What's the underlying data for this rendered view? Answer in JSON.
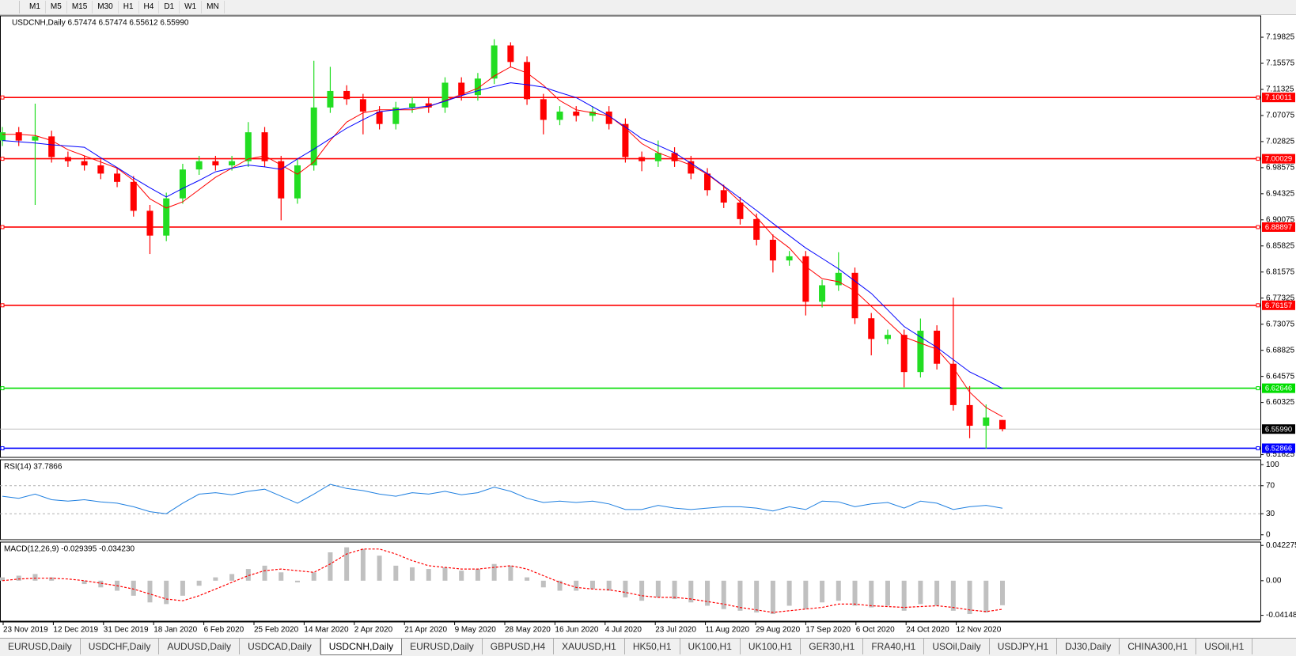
{
  "toolbar": {
    "timeframes": [
      "M1",
      "M5",
      "M15",
      "M30",
      "H1",
      "H4",
      "D1",
      "W1",
      "MN"
    ]
  },
  "tabs": [
    "EURUSD,Daily",
    "USDCHF,Daily",
    "AUDUSD,Daily",
    "USDCAD,Daily",
    "USDCNH,Daily",
    "EURUSD,Daily",
    "GBPUSD,H4",
    "XAUUSD,H1",
    "HK50,H1",
    "UK100,H1",
    "UK100,H1",
    "GER30,H1",
    "FRA40,H1",
    "USOil,Daily",
    "USDJPY,H1",
    "DJ30,Daily",
    "CHINA300,H1",
    "USOil,H1"
  ],
  "active_tab": 4,
  "time_axis": {
    "labels": [
      "23 Nov 2019",
      "12 Dec 2019",
      "31 Dec 2019",
      "18 Jan 2020",
      "6 Feb 2020",
      "25 Feb 2020",
      "14 Mar 2020",
      "2 Apr 2020",
      "21 Apr 2020",
      "9 May 2020",
      "28 May 2020",
      "16 Jun 2020",
      "4 Jul 2020",
      "23 Jul 2020",
      "11 Aug 2020",
      "29 Aug 2020",
      "17 Sep 2020",
      "6 Oct 2020",
      "24 Oct 2020",
      "12 Nov 2020"
    ]
  },
  "chart_data": [
    {
      "type": "candlestick",
      "title": "USDCNH,Daily  6.57474 6.57474 6.55612 6.55990",
      "up_color": "#22dd22",
      "down_color": "#ff0000",
      "open": [
        7.03,
        7.0434,
        7.0299,
        7.0367,
        7.003,
        6.9963,
        6.9895,
        6.9761,
        6.9626,
        6.9155,
        6.8751,
        6.9357,
        6.9828,
        6.9963,
        6.9895,
        6.9963,
        7.0434,
        6.9963,
        6.9357,
        6.9895,
        7.0838,
        7.1107,
        7.0973,
        7.0771,
        7.0569,
        7.0838,
        7.0905,
        7.0838,
        7.1242,
        7.104,
        7.1309,
        7.1848,
        7.1579,
        7.0973,
        7.0636,
        7.0771,
        7.0703,
        7.0771,
        7.0569,
        7.003,
        6.9963,
        7.0097,
        6.9963,
        6.9761,
        6.9491,
        6.9289,
        6.902,
        6.8683,
        6.8346,
        6.8414,
        6.7673,
        6.7942,
        6.8144,
        6.7404,
        6.7067,
        6.7134,
        6.6528,
        6.7202,
        6.6663,
        6.599,
        6.5653,
        6.57474
      ],
      "high": [
        7.052,
        7.052,
        7.09,
        7.046,
        7.012,
        7.005,
        6.999,
        6.985,
        6.972,
        6.925,
        6.945,
        6.992,
        7.005,
        7.005,
        7.005,
        7.06,
        7.052,
        7.005,
        6.999,
        7.16,
        7.15,
        7.12,
        7.106,
        7.086,
        7.093,
        7.1,
        7.1,
        7.133,
        7.133,
        7.14,
        7.195,
        7.19,
        7.167,
        7.106,
        7.086,
        7.086,
        7.086,
        7.086,
        7.066,
        7.012,
        7.03,
        7.019,
        7.005,
        6.985,
        6.958,
        6.938,
        6.911,
        6.877,
        6.85,
        6.85,
        6.803,
        6.848,
        6.823,
        6.749,
        6.722,
        6.722,
        6.74,
        6.729,
        6.774,
        6.63,
        6.6,
        6.57474
      ],
      "low": [
        7.021,
        7.021,
        6.925,
        6.994,
        6.987,
        6.981,
        6.967,
        6.954,
        6.906,
        6.845,
        6.866,
        6.927,
        6.974,
        6.981,
        6.981,
        6.987,
        6.987,
        6.9,
        6.927,
        6.981,
        7.075,
        7.088,
        7.04,
        7.048,
        7.048,
        7.075,
        7.075,
        7.075,
        7.095,
        7.095,
        7.122,
        7.149,
        7.088,
        7.04,
        7.055,
        7.061,
        7.061,
        7.048,
        6.994,
        6.98,
        6.987,
        6.987,
        6.967,
        6.94,
        6.92,
        6.893,
        6.859,
        6.815,
        6.826,
        6.745,
        6.758,
        6.785,
        6.731,
        6.68,
        6.698,
        6.628,
        6.644,
        6.657,
        6.59,
        6.545,
        6.528,
        6.55612
      ],
      "close": [
        7.0434,
        7.0299,
        7.0367,
        7.003,
        6.9963,
        6.9895,
        6.9761,
        6.9626,
        6.9155,
        6.8751,
        6.9357,
        6.9828,
        6.9963,
        6.9895,
        6.9963,
        7.0434,
        6.9963,
        6.9357,
        6.9895,
        7.0838,
        7.1107,
        7.0973,
        7.0771,
        7.0569,
        7.0838,
        7.0905,
        7.0838,
        7.1242,
        7.104,
        7.1309,
        7.1848,
        7.1579,
        7.0973,
        7.0636,
        7.0771,
        7.0703,
        7.0771,
        7.0569,
        7.003,
        6.9963,
        7.0097,
        6.9963,
        6.9761,
        6.9491,
        6.9289,
        6.902,
        6.8683,
        6.8346,
        6.8414,
        6.7673,
        6.7942,
        6.8144,
        6.7404,
        6.7067,
        6.7134,
        6.6528,
        6.7202,
        6.6663,
        6.599,
        6.5653,
        6.5788,
        6.5599
      ],
      "lines": [
        {
          "color": "#ff0000",
          "values": [
            7.04,
            7.04,
            7.038,
            7.03,
            7.015,
            7.005,
            6.995,
            6.985,
            6.965,
            6.935,
            6.92,
            6.93,
            6.95,
            6.97,
            6.985,
            7.0,
            7.005,
            6.99,
            6.975,
            6.995,
            7.03,
            7.06,
            7.075,
            7.08,
            7.08,
            7.08,
            7.085,
            7.095,
            7.105,
            7.115,
            7.135,
            7.15,
            7.14,
            7.12,
            7.095,
            7.08,
            7.075,
            7.07,
            7.05,
            7.025,
            7.01,
            7.0,
            6.99,
            6.975,
            6.955,
            6.93,
            6.905,
            6.875,
            6.855,
            6.825,
            6.805,
            6.8,
            6.785,
            6.76,
            6.735,
            6.71,
            6.7,
            6.69,
            6.66,
            6.62,
            6.595,
            6.58
          ]
        },
        {
          "color": "#0000ff",
          "values": [
            7.03,
            7.028,
            7.026,
            7.023,
            7.021,
            7.019,
            7.002,
            6.986,
            6.969,
            6.953,
            6.938,
            6.952,
            6.965,
            6.979,
            6.985,
            6.99,
            6.987,
            6.983,
            7.0,
            7.016,
            7.033,
            7.05,
            7.064,
            7.077,
            7.08,
            7.083,
            7.086,
            7.094,
            7.103,
            7.111,
            7.118,
            7.124,
            7.121,
            7.117,
            7.108,
            7.1,
            7.085,
            7.07,
            7.052,
            7.033,
            7.022,
            7.01,
            6.993,
            6.976,
            6.956,
            6.936,
            6.916,
            6.895,
            6.875,
            6.855,
            6.838,
            6.821,
            6.801,
            6.781,
            6.754,
            6.727,
            6.71,
            6.693,
            6.673,
            6.653,
            6.64,
            6.626
          ]
        }
      ],
      "levels": [
        {
          "value": 7.10011,
          "color": "#ff0000"
        },
        {
          "value": 7.00029,
          "color": "#ff0000"
        },
        {
          "value": 6.88897,
          "color": "#ff0000"
        },
        {
          "value": 6.76157,
          "color": "#ff0000"
        },
        {
          "value": 6.62646,
          "color": "#00dd00"
        },
        {
          "value": 6.52866,
          "color": "#0000ff"
        }
      ],
      "current": {
        "value": 6.5599,
        "label": "6.55990"
      },
      "ylim": [
        6.5138,
        7.2331
      ],
      "yticks": [
        7.19825,
        7.15575,
        7.11325,
        7.07075,
        7.02825,
        6.98575,
        6.94325,
        6.90075,
        6.85825,
        6.81575,
        6.77325,
        6.73075,
        6.68825,
        6.64575,
        6.60325,
        6.51825
      ]
    },
    {
      "type": "line",
      "title": "RSI(14) 37.7866",
      "color": "#1e7fe0",
      "values": [
        55,
        52,
        58,
        50,
        48,
        50,
        47,
        45,
        40,
        33,
        30,
        45,
        58,
        60,
        57,
        62,
        65,
        55,
        45,
        58,
        72,
        66,
        63,
        58,
        55,
        60,
        58,
        62,
        57,
        60,
        68,
        62,
        52,
        46,
        48,
        46,
        48,
        44,
        36,
        36,
        42,
        38,
        36,
        38,
        40,
        40,
        38,
        34,
        40,
        36,
        48,
        47,
        40,
        44,
        46,
        38,
        48,
        45,
        36,
        40,
        42,
        37.7866
      ],
      "ylim": [
        -7,
        107
      ],
      "yticks": [
        0,
        30,
        70,
        100
      ]
    },
    {
      "type": "macd",
      "title": "MACD(12,26,9) -0.029395 -0.034230",
      "hist_color": "#c0c0c0",
      "signal_color": "#ff0000",
      "histogram": [
        0.004,
        0.006,
        0.008,
        0.004,
        0.0,
        -0.004,
        -0.008,
        -0.012,
        -0.018,
        -0.026,
        -0.028,
        -0.018,
        -0.006,
        0.004,
        0.008,
        0.014,
        0.018,
        0.01,
        -0.002,
        0.01,
        0.034,
        0.04,
        0.038,
        0.03,
        0.018,
        0.016,
        0.014,
        0.016,
        0.012,
        0.014,
        0.02,
        0.018,
        0.004,
        -0.008,
        -0.012,
        -0.012,
        -0.01,
        -0.012,
        -0.02,
        -0.024,
        -0.02,
        -0.022,
        -0.026,
        -0.03,
        -0.034,
        -0.036,
        -0.038,
        -0.04,
        -0.03,
        -0.034,
        -0.026,
        -0.024,
        -0.03,
        -0.032,
        -0.03,
        -0.036,
        -0.028,
        -0.03,
        -0.036,
        -0.04,
        -0.038,
        -0.029395
      ],
      "signal": [
        0.0,
        0.002,
        0.003,
        0.003,
        0.002,
        0.0,
        -0.003,
        -0.006,
        -0.01,
        -0.016,
        -0.022,
        -0.024,
        -0.018,
        -0.01,
        -0.002,
        0.006,
        0.012,
        0.014,
        0.012,
        0.01,
        0.02,
        0.032,
        0.038,
        0.038,
        0.032,
        0.024,
        0.018,
        0.016,
        0.014,
        0.014,
        0.016,
        0.018,
        0.014,
        0.006,
        -0.002,
        -0.008,
        -0.01,
        -0.011,
        -0.014,
        -0.018,
        -0.02,
        -0.02,
        -0.022,
        -0.025,
        -0.028,
        -0.032,
        -0.035,
        -0.038,
        -0.036,
        -0.034,
        -0.032,
        -0.028,
        -0.028,
        -0.03,
        -0.031,
        -0.032,
        -0.031,
        -0.03,
        -0.032,
        -0.035,
        -0.037,
        -0.03423
      ],
      "ylim": [
        -0.0485,
        0.0463
      ],
      "yticks": [
        0.042275,
        {
          "value": 0,
          "label": "0.00"
        },
        -0.04148
      ]
    }
  ]
}
